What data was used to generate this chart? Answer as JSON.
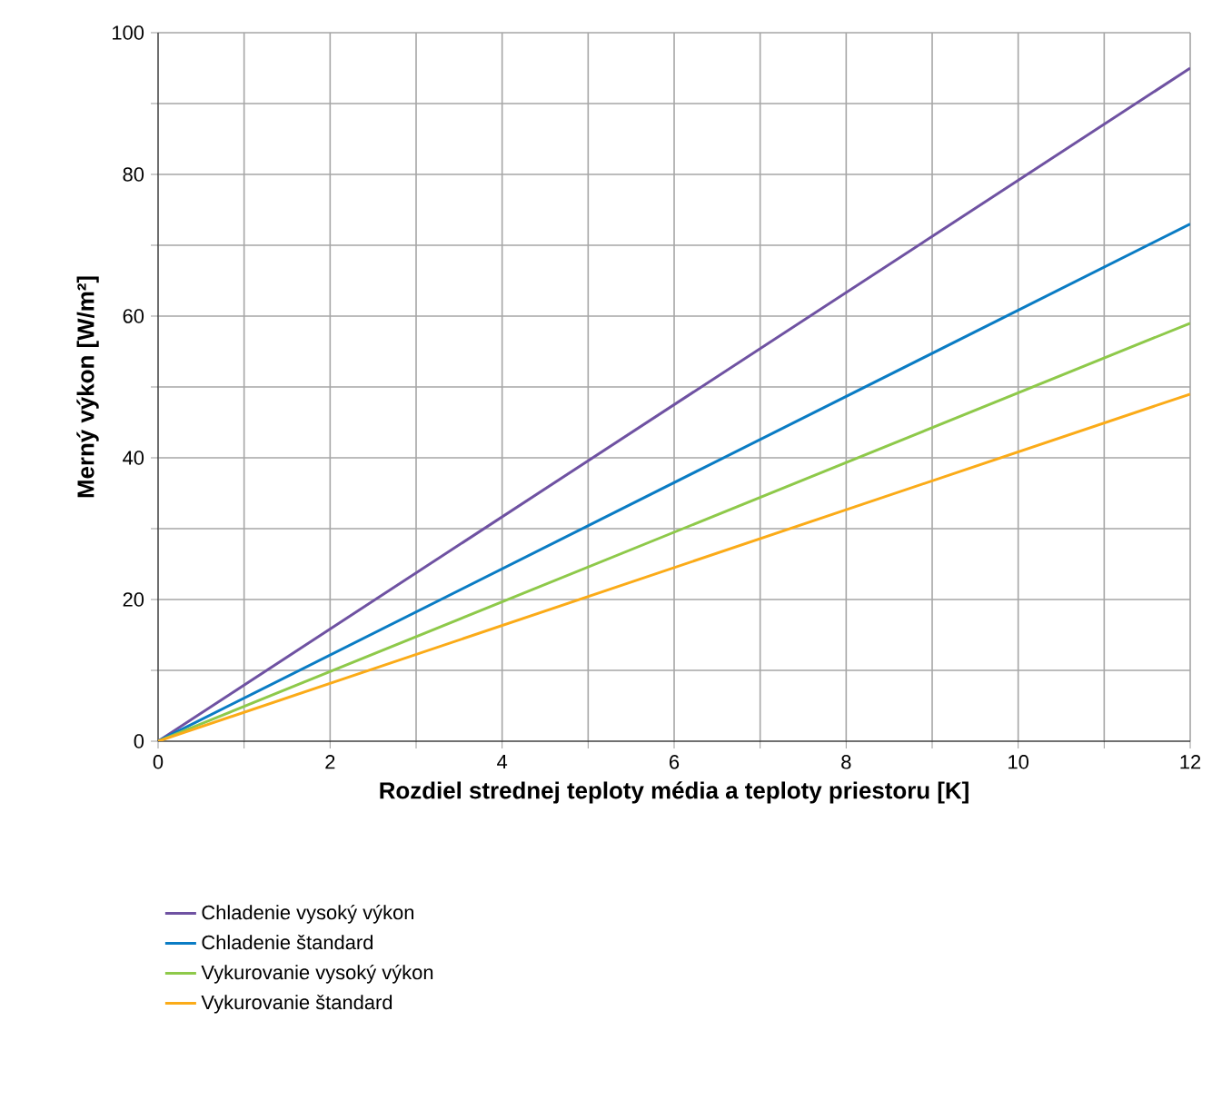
{
  "chart_data": {
    "type": "line",
    "xlabel": "Rozdiel strednej teploty média a teploty priestoru [K]",
    "ylabel": "Merný výkon [W/m²]",
    "x": [
      0,
      12
    ],
    "series": [
      {
        "name": "Chladenie vysoký výkon",
        "color": "#6f52a2",
        "values": [
          0,
          95
        ]
      },
      {
        "name": "Chladenie štandard",
        "color": "#0a7cc4",
        "values": [
          0,
          73
        ]
      },
      {
        "name": "Vykurovanie vysoký výkon",
        "color": "#8ec94a",
        "values": [
          0,
          59
        ]
      },
      {
        "name": "Vykurovanie štandard",
        "color": "#fbab18",
        "values": [
          0,
          49
        ]
      }
    ],
    "xlim": [
      0,
      12
    ],
    "ylim": [
      0,
      100
    ],
    "xticks": [
      0,
      {
        "value": 1,
        "label": null
      },
      2,
      {
        "value": 3,
        "label": null
      },
      4,
      {
        "value": 5,
        "label": null
      },
      6,
      {
        "value": 7,
        "label": null
      },
      8,
      {
        "value": 9,
        "label": null
      },
      10,
      {
        "value": 11,
        "label": null
      },
      12
    ],
    "yticks": [
      0,
      {
        "value": 10,
        "label": null
      },
      20,
      {
        "value": 30,
        "label": null
      },
      40,
      {
        "value": 50,
        "label": null
      },
      60,
      {
        "value": 70,
        "label": null
      },
      80,
      {
        "value": 90,
        "label": null
      },
      100
    ],
    "grid": true,
    "legend": "bottom",
    "marker": "none",
    "line_style": "solid"
  }
}
